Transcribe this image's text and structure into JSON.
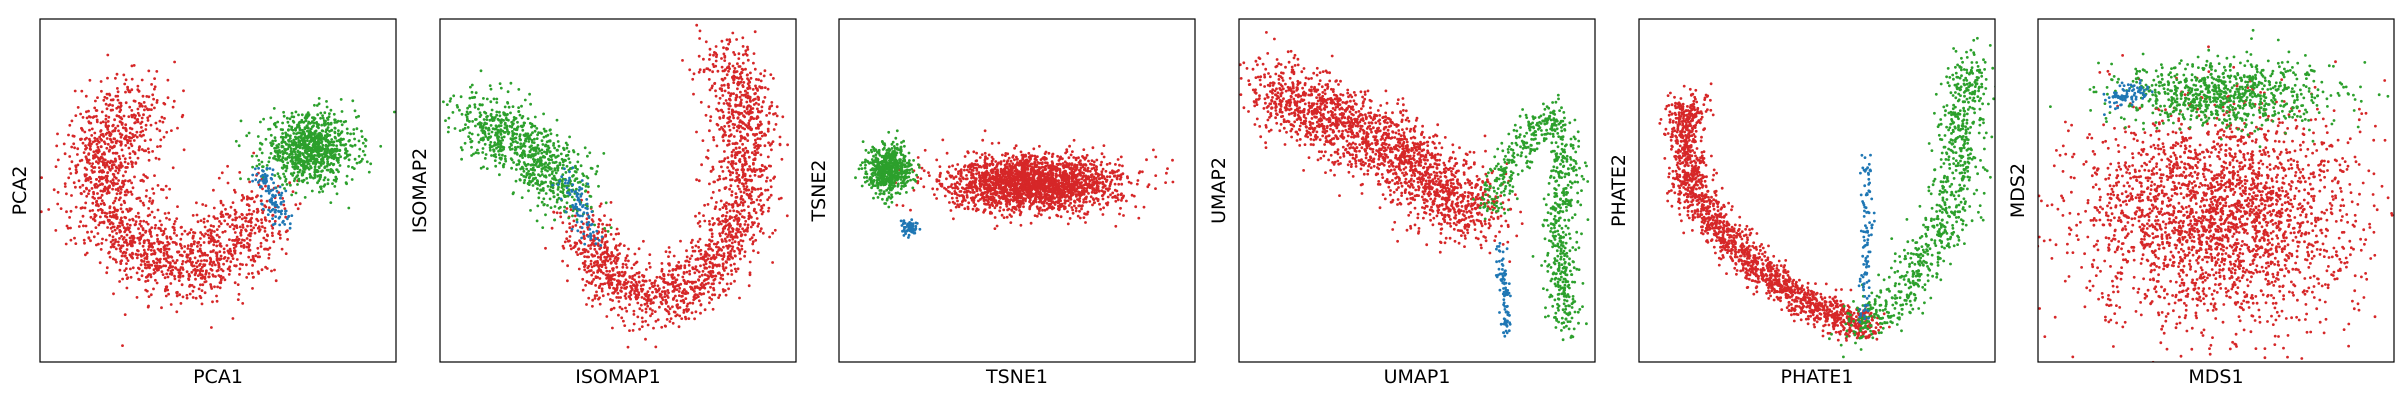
{
  "chart_data": [
    {
      "type": "scatter",
      "xlabel": "PCA1",
      "ylabel": "PCA2",
      "ticks": "none",
      "grid": false,
      "legend": "none",
      "xlim": [
        0,
        100
      ],
      "ylim": [
        0,
        100
      ],
      "series": [
        {
          "color": "#d62728",
          "n_points": 1700,
          "shape": "curve",
          "path": [
            [
              30,
              75
            ],
            [
              20,
              70
            ],
            [
              18,
              55
            ],
            [
              22,
              40
            ],
            [
              32,
              30
            ],
            [
              45,
              28
            ],
            [
              55,
              35
            ],
            [
              62,
              45
            ]
          ],
          "spread": 6
        },
        {
          "color": "#2ca02c",
          "n_points": 900,
          "shape": "blob",
          "center": [
            76,
            62
          ],
          "size": [
            13,
            10
          ]
        },
        {
          "color": "#1f77b4",
          "n_points": 110,
          "shape": "curve",
          "path": [
            [
              62,
              55
            ],
            [
              66,
              47
            ],
            [
              68,
              40
            ]
          ],
          "spread": 1.6
        }
      ]
    },
    {
      "type": "scatter",
      "xlabel": "ISOMAP1",
      "ylabel": "ISOMAP2",
      "ticks": "none",
      "grid": false,
      "legend": "none",
      "xlim": [
        0,
        100
      ],
      "ylim": [
        0,
        100
      ],
      "series": [
        {
          "color": "#d62728",
          "n_points": 1800,
          "shape": "curve",
          "path": [
            [
              40,
              40
            ],
            [
              48,
              25
            ],
            [
              60,
              18
            ],
            [
              75,
              25
            ],
            [
              85,
              45
            ],
            [
              86,
              70
            ],
            [
              80,
              90
            ]
          ],
          "spread": 4.5
        },
        {
          "color": "#2ca02c",
          "n_points": 800,
          "shape": "curve",
          "path": [
            [
              10,
              72
            ],
            [
              22,
              65
            ],
            [
              32,
              55
            ],
            [
              38,
              48
            ]
          ],
          "spread": 5
        },
        {
          "color": "#1f77b4",
          "n_points": 90,
          "shape": "curve",
          "path": [
            [
              35,
              55
            ],
            [
              40,
              45
            ],
            [
              42,
              35
            ]
          ],
          "spread": 1.8
        }
      ]
    },
    {
      "type": "scatter",
      "xlabel": "TSNE1",
      "ylabel": "TSNE2",
      "ticks": "none",
      "grid": false,
      "legend": "none",
      "xlim": [
        0,
        100
      ],
      "ylim": [
        0,
        100
      ],
      "series": [
        {
          "color": "#d62728",
          "n_points": 2200,
          "shape": "blob",
          "center": [
            55,
            52
          ],
          "size": [
            24,
            8
          ]
        },
        {
          "color": "#2ca02c",
          "n_points": 600,
          "shape": "blob",
          "center": [
            14,
            56
          ],
          "size": [
            6,
            7
          ]
        },
        {
          "color": "#1f77b4",
          "n_points": 60,
          "shape": "curve",
          "path": [
            [
              19,
              40
            ],
            [
              21,
              38
            ]
          ],
          "spread": 1
        }
      ]
    },
    {
      "type": "scatter",
      "xlabel": "UMAP1",
      "ylabel": "UMAP2",
      "ticks": "none",
      "grid": false,
      "legend": "none",
      "xlim": [
        0,
        100
      ],
      "ylim": [
        0,
        100
      ],
      "series": [
        {
          "color": "#d62728",
          "n_points": 1900,
          "shape": "curve",
          "path": [
            [
              8,
              80
            ],
            [
              18,
              75
            ],
            [
              30,
              68
            ],
            [
              45,
              60
            ],
            [
              58,
              50
            ],
            [
              68,
              42
            ]
          ],
          "spread": 5.5
        },
        {
          "color": "#2ca02c",
          "n_points": 700,
          "shape": "curve",
          "path": [
            [
              70,
              45
            ],
            [
              78,
              62
            ],
            [
              87,
              72
            ],
            [
              92,
              60
            ],
            [
              90,
              30
            ],
            [
              92,
              10
            ]
          ],
          "spread": 2.5
        },
        {
          "color": "#1f77b4",
          "n_points": 90,
          "shape": "curve",
          "path": [
            [
              73,
              35
            ],
            [
              75,
              20
            ],
            [
              75,
              8
            ]
          ],
          "spread": 0.8
        }
      ]
    },
    {
      "type": "scatter",
      "xlabel": "PHATE1",
      "ylabel": "PHATE2",
      "ticks": "none",
      "grid": false,
      "legend": "none",
      "xlim": [
        0,
        100
      ],
      "ylim": [
        0,
        100
      ],
      "series": [
        {
          "color": "#d62728",
          "n_points": 1700,
          "shape": "curve",
          "path": [
            [
              17,
              76
            ],
            [
              12,
              72
            ],
            [
              15,
              50
            ],
            [
              25,
              35
            ],
            [
              45,
              18
            ],
            [
              65,
              10
            ]
          ],
          "spread": 2.6
        },
        {
          "color": "#2ca02c",
          "n_points": 800,
          "shape": "curve",
          "path": [
            [
              60,
              10
            ],
            [
              75,
              20
            ],
            [
              88,
              45
            ],
            [
              90,
              65
            ],
            [
              93,
              88
            ]
          ],
          "spread": 3.5
        },
        {
          "color": "#1f77b4",
          "n_points": 110,
          "shape": "curve",
          "path": [
            [
              63,
              12
            ],
            [
              64,
              35
            ],
            [
              64,
              60
            ]
          ],
          "spread": 0.9
        }
      ]
    },
    {
      "type": "scatter",
      "xlabel": "MDS1",
      "ylabel": "MDS2",
      "ticks": "none",
      "grid": false,
      "legend": "none",
      "xlim": [
        0,
        100
      ],
      "ylim": [
        0,
        100
      ],
      "series": [
        {
          "color": "#d62728",
          "n_points": 2600,
          "shape": "blob",
          "center": [
            50,
            42
          ],
          "size": [
            38,
            32
          ]
        },
        {
          "color": "#2ca02c",
          "n_points": 800,
          "shape": "blob",
          "center": [
            52,
            78
          ],
          "size": [
            30,
            10
          ]
        },
        {
          "color": "#1f77b4",
          "n_points": 80,
          "shape": "curve",
          "path": [
            [
              20,
              76
            ],
            [
              30,
              80
            ]
          ],
          "spread": 1.5
        }
      ]
    }
  ]
}
